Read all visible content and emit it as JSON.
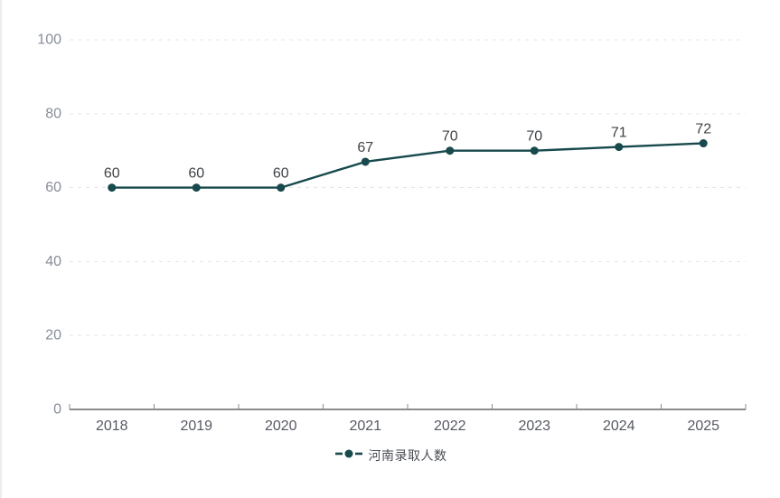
{
  "chart_data": {
    "type": "line",
    "title": "",
    "categories": [
      "2018",
      "2019",
      "2020",
      "2021",
      "2022",
      "2023",
      "2024",
      "2025"
    ],
    "series": [
      {
        "name": "河南录取人数",
        "values": [
          60,
          60,
          60,
          67,
          70,
          70,
          71,
          72
        ],
        "color": "#17494d"
      }
    ],
    "xlabel": "",
    "ylabel": "",
    "ylim": [
      0,
      100
    ],
    "yticks": [
      0,
      20,
      40,
      60,
      80,
      100
    ],
    "grid": "horizontal-dashed",
    "data_labels": [
      60,
      60,
      60,
      67,
      70,
      70,
      71,
      72
    ],
    "legend_position": "bottom-center"
  },
  "legend": {
    "items": [
      {
        "label": "河南录取人数",
        "color": "#17494d"
      }
    ]
  },
  "colors": {
    "background": "#ffffff",
    "left_border": "#ededed",
    "series_line": "#17494d",
    "axis_line": "#8b8b90",
    "grid_line": "#e4e4e8",
    "y_tick_label": "#878d9a",
    "x_tick_label": "#555a62",
    "data_label": "#3f4347",
    "legend_text": "#4a4e54"
  }
}
